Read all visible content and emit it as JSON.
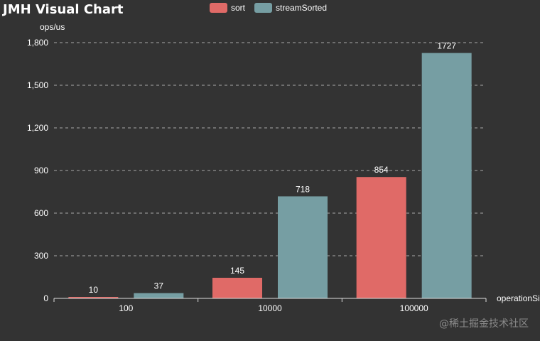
{
  "chart_data": {
    "type": "bar",
    "title": "JMH Visual Chart",
    "ylabel": "ops/us",
    "xlabel": "operationSize",
    "categories": [
      "100",
      "10000",
      "100000"
    ],
    "series": [
      {
        "name": "sort",
        "values": [
          10,
          145,
          854
        ],
        "color": "#e06a67"
      },
      {
        "name": "streamSorted",
        "values": [
          37,
          718,
          1727
        ],
        "color": "#769ea3"
      }
    ],
    "ylim": [
      0,
      1800
    ],
    "yticks": [
      0,
      300,
      600,
      900,
      1200,
      1500,
      1800
    ],
    "ytick_labels": [
      "0",
      "300",
      "600",
      "900",
      "1,200",
      "1,500",
      "1,800"
    ],
    "grid": true,
    "legend_position": "top-center"
  },
  "watermark": "@稀土掘金技术社区"
}
